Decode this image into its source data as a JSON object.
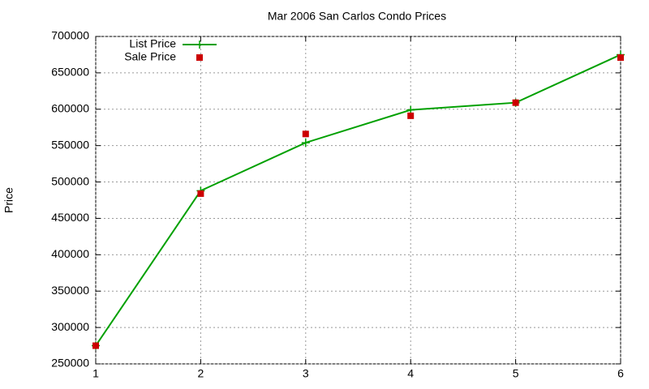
{
  "chart_data": {
    "type": "line",
    "title": "Mar 2006 San Carlos Condo Prices",
    "y_label": "Price",
    "x": [
      1,
      2,
      3,
      4,
      5,
      6
    ],
    "series": [
      {
        "name": "List Price",
        "color": "#00a000",
        "mode": "lines+points",
        "values": [
          275000,
          488000,
          554000,
          599000,
          609000,
          675000
        ]
      },
      {
        "name": "Sale Price",
        "color": "#cc0000",
        "mode": "points",
        "values": [
          275000,
          484000,
          566000,
          591000,
          609000,
          671000
        ]
      }
    ],
    "xlim": [
      1,
      6
    ],
    "xticks": [
      1,
      2,
      3,
      4,
      5,
      6
    ],
    "ylim": [
      250000,
      700000
    ],
    "yticks": [
      250000,
      300000,
      350000,
      400000,
      450000,
      500000,
      550000,
      600000,
      650000,
      700000
    ],
    "grid": true,
    "legend": "top-left"
  }
}
